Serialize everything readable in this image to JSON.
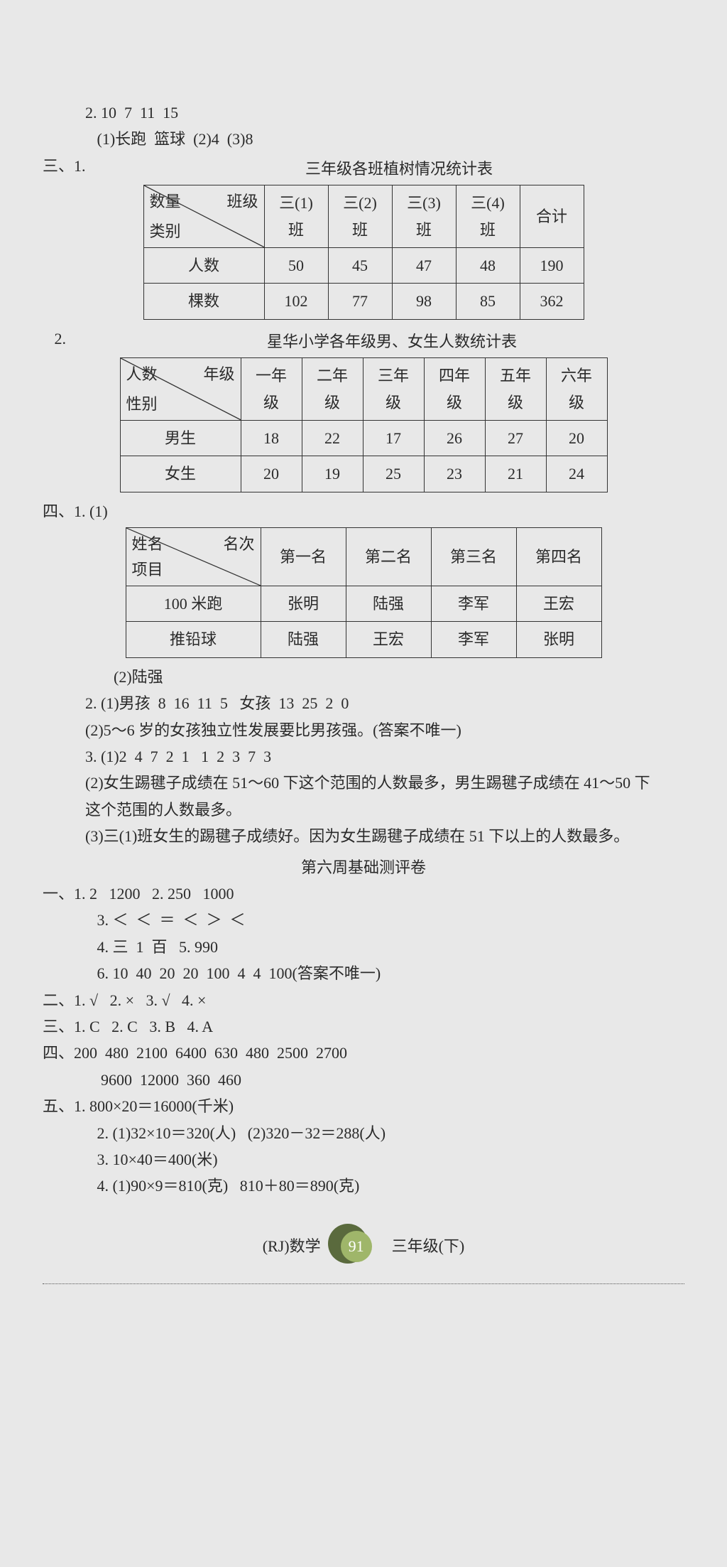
{
  "top": {
    "line1": "2. 10  7  11  15",
    "line2": "   (1)长跑  篮球  (2)4  (3)8"
  },
  "san1": {
    "label": "三、1.",
    "title": "三年级各班植树情况统计表",
    "diag_top": "班级",
    "diag_bot": "类别",
    "diag_mid": "数量",
    "cols": [
      "三(1)班",
      "三(2)班",
      "三(3)班",
      "三(4)班",
      "合计"
    ],
    "r1_label": "人数",
    "r1": [
      "50",
      "45",
      "47",
      "48",
      "190"
    ],
    "r2_label": "棵数",
    "r2": [
      "102",
      "77",
      "98",
      "85",
      "362"
    ]
  },
  "san2": {
    "label": "   2.",
    "title": "星华小学各年级男、女生人数统计表",
    "diag_top": "年级",
    "diag_bot": "性别",
    "diag_mid": "人数",
    "cols": [
      "一年级",
      "二年级",
      "三年级",
      "四年级",
      "五年级",
      "六年级"
    ],
    "r1_label": "男生",
    "r1": [
      "18",
      "22",
      "17",
      "26",
      "27",
      "20"
    ],
    "r2_label": "女生",
    "r2": [
      "20",
      "19",
      "25",
      "23",
      "21",
      "24"
    ]
  },
  "si1": {
    "label": "四、1. (1)",
    "diag_top": "名次",
    "diag_bot": "项目",
    "diag_mid": "姓名",
    "cols": [
      "第一名",
      "第二名",
      "第三名",
      "第四名"
    ],
    "r1_label": "100 米跑",
    "r1": [
      "张明",
      "陆强",
      "李军",
      "王宏"
    ],
    "r2_label": "推铅球",
    "r2": [
      "陆强",
      "王宏",
      "李军",
      "张明"
    ]
  },
  "after_si1": {
    "l1": "(2)陆强",
    "l2": "2. (1)男孩  8  16  11  5   女孩  13  25  2  0",
    "l3": "   (2)5～6 岁的女孩独立性发展要比男孩强。(答案不唯一)",
    "l4": "3. (1)2  4  7  2  1   1  2  3  7  3",
    "l5": "   (2)女生踢毽子成绩在 51～60 下这个范围的人数最多，男生踢毽子成绩在 41～50 下这个范围的人数最多。",
    "l6": "   (3)三(1)班女生的踢毽子成绩好。因为女生踢毽子成绩在 51 下以上的人数最多。"
  },
  "week6": {
    "title": "第六周基础测评卷",
    "y1": "一、1. 2   1200   2. 250   1000",
    "y3": "   3. ＜  ＜  ＝  ＜  ＞  ＜",
    "y4": "   4. 三  1  百   5. 990",
    "y6": "   6. 10  40  20  20  100  4  4  100(答案不唯一)",
    "er": "二、1. √   2. ×   3. √   4. ×",
    "san": "三、1. C   2. C   3. B   4. A",
    "si1": "四、200  480  2100  6400  630  480  2500  2700",
    "si2": "    9600  12000  360  460",
    "wu1": "五、1. 800×20＝16000(千米)",
    "wu2": "   2. (1)32×10＝320(人)   (2)320－32＝288(人)",
    "wu3": "   3. 10×40＝400(米)",
    "wu4": "   4. (1)90×9＝810(克)   810＋80＝890(克)"
  },
  "footer": {
    "left": "(RJ)数学",
    "page": "91",
    "right": "三年级(下)"
  },
  "cellw": {
    "t1_label": 170,
    "t1_col": 90,
    "t2_label": 170,
    "t2_col": 86,
    "t3_label": 190,
    "t3_col": 120,
    "diag_h": 82
  }
}
